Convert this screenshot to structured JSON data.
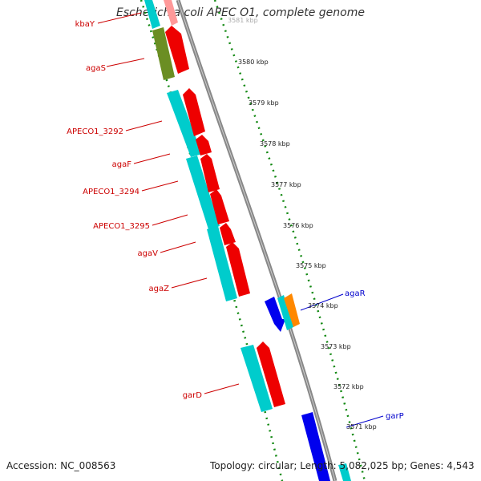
{
  "title": "Escherichia coli APEC O1, complete genome",
  "accession": "Accession: NC_008563",
  "topology": "Topology: circular; Length: 5,082,025 bp; Genes: 4,543",
  "colors": {
    "red_gene": "#ee0000",
    "cyan_gene": "#00cccc",
    "olive_gene": "#6b8e23",
    "blue_gene": "#0000ee",
    "orange_gene": "#ff8800",
    "label_red": "#cc0000",
    "label_blue": "#0000cc",
    "tick_green": "#118811",
    "backbone": "#888888"
  },
  "scale_labels": [
    "3581 kbp",
    "3580 kbp",
    "3579 kbp",
    "3578 kbp",
    "3577 kbp",
    "3576 kbp",
    "3575 kbp",
    "3574 kbp",
    "3573 kbp",
    "3572 kbp",
    "3571 kbp"
  ],
  "gene_labels": {
    "left": [
      "kbaY",
      "agaS",
      "APECO1_3292",
      "agaF",
      "APECO1_3294",
      "APECO1_3295",
      "agaV",
      "agaZ",
      "garD"
    ],
    "right": [
      "agaR",
      "garP"
    ]
  }
}
